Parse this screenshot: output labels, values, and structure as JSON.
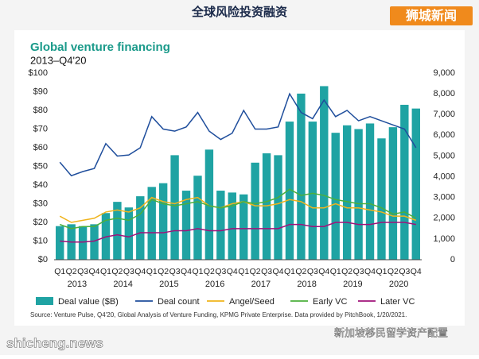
{
  "header": {
    "title": "全球风险投资融资",
    "badge": "狮城新闻"
  },
  "footer": {
    "site": "shicheng.news",
    "caption": "新加坡移民留学资产配置"
  },
  "chart_data": {
    "type": "bar_line",
    "title": "Global venture financing",
    "subtitle": "2013–Q4'20",
    "categories": [
      "Q1",
      "Q2",
      "Q3",
      "Q4",
      "Q1",
      "Q2",
      "Q3",
      "Q4",
      "Q1",
      "Q2",
      "Q3",
      "Q4",
      "Q1",
      "Q2",
      "Q3",
      "Q4",
      "Q1",
      "Q2",
      "Q3",
      "Q4",
      "Q1",
      "Q2",
      "Q3",
      "Q4",
      "Q1",
      "Q2",
      "Q3",
      "Q4",
      "Q1",
      "Q2",
      "Q3",
      "Q4"
    ],
    "year_labels": [
      "2013",
      "2014",
      "2015",
      "2016",
      "2017",
      "2018",
      "2019",
      "2020"
    ],
    "series": [
      {
        "name": "Deal value ($B)",
        "color": "#1fa3a3",
        "type": "bar",
        "values": [
          18,
          19,
          18,
          19,
          25,
          31,
          28,
          34,
          39,
          41,
          56,
          37,
          45,
          59,
          37,
          36,
          35,
          52,
          57,
          56,
          74,
          89,
          74,
          93,
          68,
          72,
          70,
          73,
          65,
          71,
          83,
          81
        ]
      },
      {
        "name": "Deal count",
        "color": "#1f4e9c",
        "type": "line",
        "axis": "y2",
        "values": [
          4700,
          4050,
          4250,
          4400,
          5600,
          5000,
          5050,
          5400,
          6900,
          6300,
          6200,
          6400,
          7100,
          6200,
          5800,
          6100,
          7200,
          6300,
          6300,
          6400,
          8000,
          7100,
          6800,
          7700,
          6900,
          7200,
          6700,
          6900,
          6700,
          6500,
          6300,
          5400
        ]
      },
      {
        "name": "Angel/Seed",
        "color": "#f0b41c",
        "type": "line",
        "axis": "y2",
        "values": [
          2100,
          1800,
          1900,
          2000,
          2300,
          2400,
          2300,
          2500,
          3000,
          2800,
          2700,
          2900,
          3000,
          2600,
          2500,
          2700,
          2800,
          2600,
          2600,
          2700,
          2900,
          2800,
          2500,
          2500,
          2700,
          2500,
          2500,
          2400,
          2300,
          2100,
          2100,
          1900
        ]
      },
      {
        "name": "Early VC",
        "color": "#4caf3c",
        "type": "line",
        "axis": "y2",
        "values": [
          1700,
          1500,
          1600,
          1600,
          1900,
          2000,
          1900,
          2200,
          2900,
          2700,
          2600,
          2700,
          2800,
          2600,
          2500,
          2600,
          2800,
          2700,
          2800,
          3000,
          3400,
          3100,
          3200,
          3100,
          2900,
          2800,
          2700,
          2700,
          2500,
          2200,
          2300,
          2000
        ]
      },
      {
        "name": "Later VC",
        "color": "#a0127a",
        "type": "line",
        "axis": "y2",
        "values": [
          900,
          850,
          850,
          900,
          1100,
          1200,
          1100,
          1300,
          1300,
          1300,
          1400,
          1400,
          1500,
          1400,
          1400,
          1500,
          1500,
          1500,
          1500,
          1500,
          1700,
          1700,
          1600,
          1600,
          1800,
          1800,
          1700,
          1700,
          1800,
          1800,
          1800,
          1700
        ]
      }
    ],
    "ylim": [
      0,
      100
    ],
    "yticks": [
      {
        "value": 0,
        "label": "$0"
      },
      {
        "value": 10,
        "label": "$10"
      },
      {
        "value": 20,
        "label": "$20"
      },
      {
        "value": 30,
        "label": "$30"
      },
      {
        "value": 40,
        "label": "$40"
      },
      {
        "value": 50,
        "label": "$50"
      },
      {
        "value": 60,
        "label": "$60"
      },
      {
        "value": 70,
        "label": "$70"
      },
      {
        "value": 80,
        "label": "$80"
      },
      {
        "value": 90,
        "label": "$90"
      },
      {
        "value": 100,
        "label": "$100"
      }
    ],
    "y2lim": [
      0,
      9000
    ],
    "y2ticks": [
      0,
      {
        "value": 1000,
        "label": "1,000"
      },
      {
        "value": 2000,
        "label": "2,000"
      },
      {
        "value": 3000,
        "label": "3,000"
      },
      {
        "value": 4000,
        "label": "4,000"
      },
      {
        "value": 5000,
        "label": "5,000"
      },
      {
        "value": 6000,
        "label": "6,000"
      },
      {
        "value": 7000,
        "label": "7,000"
      },
      {
        "value": 8000,
        "label": "8,000"
      },
      {
        "value": 9000,
        "label": "9,000"
      }
    ],
    "grid": false,
    "legend": "bottom",
    "source": "Source: Venture Pulse, Q4'20, Global Analysis of Venture Funding, KPMG Private Enterprise. Data provided by PitchBook, 1/20/2021."
  }
}
